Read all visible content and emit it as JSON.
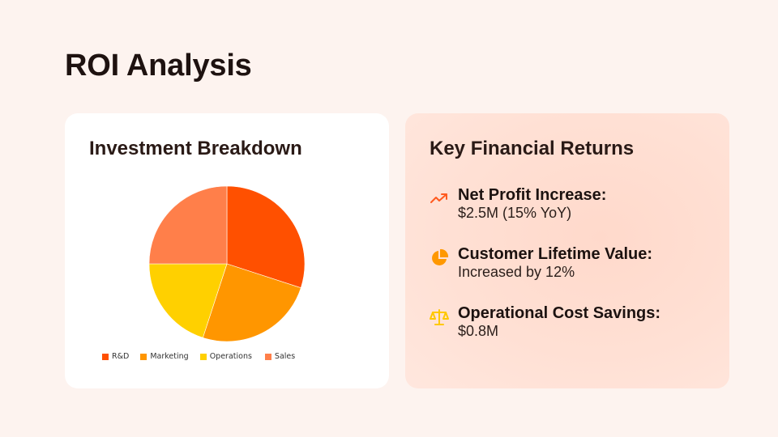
{
  "page": {
    "title": "ROI Analysis"
  },
  "left_card": {
    "title": "Investment Breakdown"
  },
  "right_card": {
    "title": "Key Financial Returns",
    "items": [
      {
        "icon": "trending-up-icon",
        "label": "Net Profit Increase:",
        "value": "$2.5M (15% YoY)",
        "color": "#ff5a1f"
      },
      {
        "icon": "pie-chart-icon",
        "label": "Customer Lifetime Value:",
        "value": "Increased by 12%",
        "color": "#ff9800"
      },
      {
        "icon": "scale-balance-icon",
        "label": "Operational Cost Savings:",
        "value": "$0.8M",
        "color": "#ffc800"
      }
    ]
  },
  "colors": {
    "background": "#fdf3ef",
    "rnd": "#ff5000",
    "marketing": "#ff9600",
    "operations": "#ffd000",
    "sales": "#ff7f4a"
  },
  "chart_data": {
    "type": "pie",
    "title": "Investment Breakdown",
    "categories": [
      "R&D",
      "Marketing",
      "Operations",
      "Sales"
    ],
    "values": [
      30,
      25,
      20,
      25
    ],
    "colors": [
      "#ff5000",
      "#ff9600",
      "#ffd000",
      "#ff7f4a"
    ],
    "start_angle": "12 o'clock, clockwise",
    "legend_position": "bottom"
  }
}
